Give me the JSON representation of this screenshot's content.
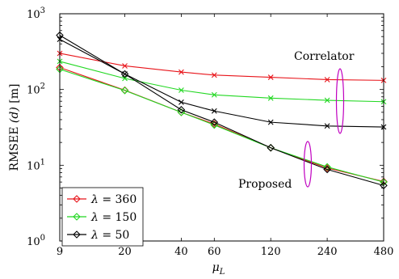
{
  "chart_data": {
    "type": "line",
    "x_scale": "log",
    "y_scale": "log",
    "xlabel_sym": "μ",
    "xlabel_sub": "L",
    "ylabel_main": "RMSEE",
    "ylabel_math": "(d)",
    "ylabel_unit": "[m]",
    "xlim": [
      9,
      480
    ],
    "ylim": [
      1,
      1000
    ],
    "x": [
      9,
      20,
      40,
      60,
      120,
      240,
      480
    ],
    "x_tick_labels": [
      "9",
      "20",
      "40",
      "60",
      "120",
      "240",
      "480"
    ],
    "y_ticks": [
      {
        "value": 1,
        "base": "10",
        "exp": "0"
      },
      {
        "value": 10,
        "base": "10",
        "exp": "1"
      },
      {
        "value": 100,
        "base": "10",
        "exp": "2"
      },
      {
        "value": 1000,
        "base": "10",
        "exp": "3"
      }
    ],
    "legend_position": "bottom-left",
    "legend_symbol": "λ",
    "series": [
      {
        "name": "360",
        "group": "Correlator",
        "color": "#e8141a",
        "marker": "x",
        "values": [
          300,
          205,
          170,
          155,
          145,
          135,
          132
        ]
      },
      {
        "name": "150",
        "group": "Correlator",
        "color": "#22d822",
        "marker": "x",
        "values": [
          235,
          140,
          98,
          85,
          77,
          72,
          69
        ]
      },
      {
        "name": "50",
        "group": "Correlator",
        "color": "#000000",
        "marker": "x",
        "values": [
          460,
          160,
          68,
          52,
          37,
          33,
          32
        ]
      },
      {
        "name": "360",
        "group": "Proposed",
        "color": "#e8141a",
        "marker": "diamond",
        "values": [
          195,
          98,
          50,
          35,
          17,
          9.2,
          6.1
        ]
      },
      {
        "name": "150",
        "group": "Proposed",
        "color": "#22d822",
        "marker": "diamond",
        "values": [
          185,
          97,
          50,
          34,
          17,
          9.5,
          6.0
        ]
      },
      {
        "name": "50",
        "group": "Proposed",
        "color": "#000000",
        "marker": "diamond",
        "values": [
          520,
          160,
          54,
          37,
          17,
          8.8,
          5.4
        ]
      }
    ],
    "legend": [
      {
        "label": "= 360",
        "color": "#e8141a"
      },
      {
        "label": "= 150",
        "color": "#22d822"
      },
      {
        "label": "= 50",
        "color": "#000000"
      }
    ],
    "annotations": {
      "correlator": "Correlator",
      "proposed": "Proposed",
      "ellipse_color": "#c000c0"
    }
  }
}
